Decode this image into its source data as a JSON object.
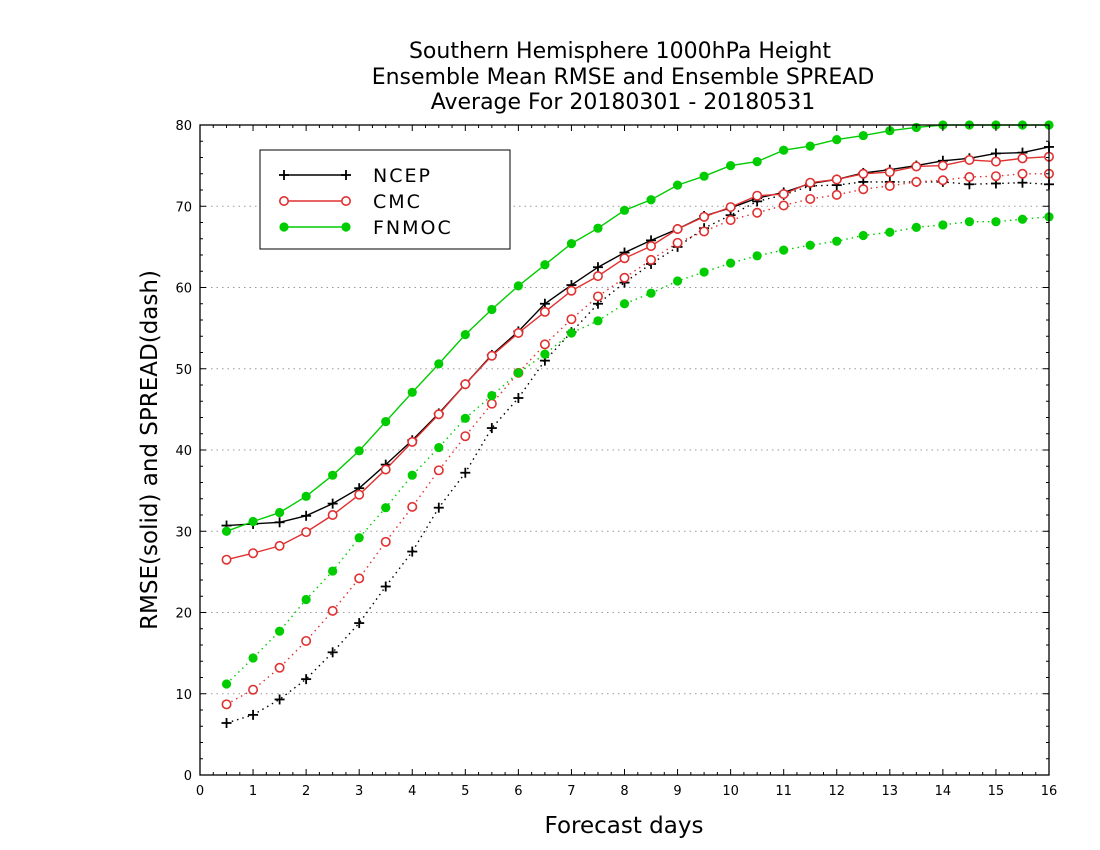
{
  "chart_data": {
    "type": "line",
    "title": [
      "Southern Hemisphere 1000hPa Height",
      "Ensemble Mean RMSE and Ensemble SPREAD",
      "Average For 20180301 - 20180531"
    ],
    "xlabel": "Forecast days",
    "ylabel": "RMSE(solid) and SPREAD(dash)",
    "xlim": [
      0,
      16
    ],
    "ylim": [
      0,
      80
    ],
    "xticks": [
      0,
      1,
      2,
      3,
      4,
      5,
      6,
      7,
      8,
      9,
      10,
      11,
      12,
      13,
      14,
      15,
      16
    ],
    "yticks": [
      0,
      10,
      20,
      30,
      40,
      50,
      60,
      70,
      80
    ],
    "grid": "horizontal dotted",
    "legend_position": "top-left",
    "x": [
      0.5,
      1,
      1.5,
      2,
      2.5,
      3,
      3.5,
      4,
      4.5,
      5,
      5.5,
      6,
      6.5,
      7,
      7.5,
      8,
      8.5,
      9,
      9.5,
      10,
      10.5,
      11,
      11.5,
      12,
      12.5,
      13,
      13.5,
      14,
      14.5,
      15,
      15.5,
      16
    ],
    "series": [
      {
        "name": "NCEP",
        "color": "#000000",
        "marker": "plus",
        "rmse": [
          30.7,
          30.9,
          31.1,
          31.9,
          33.4,
          35.3,
          38.2,
          41.2,
          44.5,
          48.1,
          51.7,
          54.6,
          58.0,
          60.3,
          62.5,
          64.3,
          65.8,
          67.2,
          68.8,
          69.8,
          71.0,
          71.7,
          72.8,
          73.3,
          74.1,
          74.5,
          75.0,
          75.6,
          75.9,
          76.5,
          76.6,
          77.3
        ],
        "spread": [
          6.4,
          7.4,
          9.3,
          11.8,
          15.1,
          18.7,
          23.2,
          27.5,
          32.9,
          37.2,
          42.7,
          46.4,
          51.0,
          54.5,
          58.0,
          60.6,
          62.9,
          65.0,
          67.3,
          68.9,
          70.6,
          71.4,
          72.5,
          72.6,
          73.0,
          73.0,
          73.0,
          73.0,
          72.7,
          72.8,
          72.9,
          72.7
        ]
      },
      {
        "name": "CMC",
        "color": "#e03030",
        "marker": "open-circle",
        "rmse": [
          26.5,
          27.3,
          28.2,
          29.9,
          32.0,
          34.5,
          37.6,
          41.0,
          44.4,
          48.1,
          51.6,
          54.4,
          57.0,
          59.6,
          61.4,
          63.6,
          65.1,
          67.2,
          68.7,
          69.9,
          71.3,
          71.5,
          72.9,
          73.3,
          74.0,
          74.2,
          74.9,
          75.0,
          75.7,
          75.5,
          75.9,
          76.1
        ],
        "spread": [
          8.7,
          10.5,
          13.2,
          16.5,
          20.2,
          24.2,
          28.7,
          33.0,
          37.5,
          41.7,
          45.7,
          49.5,
          53.0,
          56.1,
          58.9,
          61.2,
          63.4,
          65.5,
          66.9,
          68.3,
          69.2,
          70.1,
          70.9,
          71.4,
          72.1,
          72.5,
          73.0,
          73.2,
          73.6,
          73.7,
          74.0,
          74.0
        ]
      },
      {
        "name": "FNMOC",
        "color": "#00cc00",
        "marker": "filled-circle",
        "rmse": [
          30.0,
          31.2,
          32.3,
          34.3,
          36.9,
          39.9,
          43.5,
          47.1,
          50.6,
          54.2,
          57.3,
          60.2,
          62.8,
          65.4,
          67.3,
          69.5,
          70.8,
          72.6,
          73.7,
          75.0,
          75.5,
          76.9,
          77.4,
          78.2,
          78.7,
          79.3,
          79.7,
          80.0,
          80.0,
          80.0,
          80.0,
          80.0
        ],
        "spread": [
          11.2,
          14.4,
          17.7,
          21.6,
          25.1,
          29.2,
          32.9,
          36.9,
          40.3,
          43.9,
          46.7,
          49.5,
          51.8,
          54.4,
          55.9,
          58.0,
          59.3,
          60.8,
          61.9,
          63.0,
          63.9,
          64.6,
          65.2,
          65.7,
          66.4,
          66.8,
          67.4,
          67.7,
          68.1,
          68.1,
          68.4,
          68.7
        ]
      }
    ]
  }
}
